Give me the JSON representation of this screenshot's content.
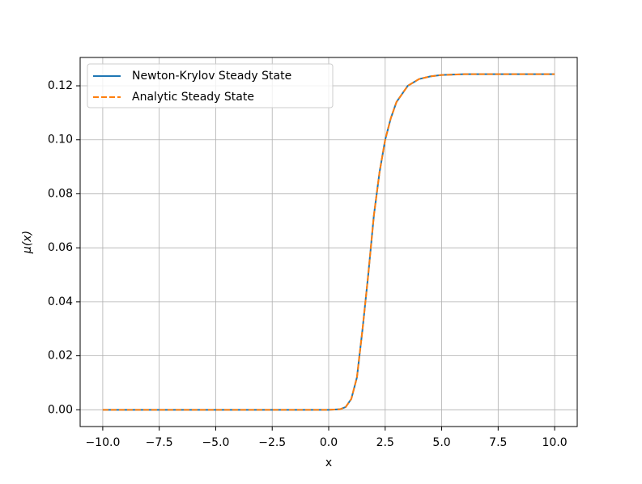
{
  "chart_data": {
    "type": "line",
    "xlabel": "x",
    "ylabel": "μ(x)",
    "x": [
      -10,
      -7.5,
      -5,
      -2.5,
      0,
      0.5,
      0.75,
      1.0,
      1.25,
      1.5,
      1.75,
      2.0,
      2.25,
      2.5,
      2.75,
      3.0,
      3.5,
      4.0,
      4.5,
      5.0,
      6.0,
      7.5,
      10
    ],
    "series": [
      {
        "name": "Newton-Krylov Steady State",
        "color": "#1f77b4",
        "dash": false,
        "values": [
          0,
          0,
          0,
          0,
          0,
          0.0002,
          0.001,
          0.004,
          0.012,
          0.03,
          0.05,
          0.072,
          0.088,
          0.1,
          0.108,
          0.114,
          0.12,
          0.1225,
          0.1235,
          0.124,
          0.1243,
          0.1243,
          0.1243
        ]
      },
      {
        "name": "Analytic Steady State",
        "color": "#ff7f0e",
        "dash": true,
        "values": [
          0,
          0,
          0,
          0,
          0,
          0.0002,
          0.001,
          0.004,
          0.012,
          0.03,
          0.05,
          0.072,
          0.088,
          0.1,
          0.108,
          0.114,
          0.12,
          0.1225,
          0.1235,
          0.124,
          0.1243,
          0.1243,
          0.1243
        ]
      }
    ],
    "xlim": [
      -11,
      11
    ],
    "ylim": [
      -0.0062,
      0.1305
    ],
    "xticks": [
      {
        "value": -10,
        "label": "−10.0"
      },
      {
        "value": -7.5,
        "label": "−7.5"
      },
      {
        "value": -5,
        "label": "−5.0"
      },
      {
        "value": -2.5,
        "label": "−2.5"
      },
      {
        "value": 0,
        "label": "0.0"
      },
      {
        "value": 2.5,
        "label": "2.5"
      },
      {
        "value": 5,
        "label": "5.0"
      },
      {
        "value": 7.5,
        "label": "7.5"
      },
      {
        "value": 10,
        "label": "10.0"
      }
    ],
    "yticks": [
      {
        "value": 0,
        "label": "0.00"
      },
      {
        "value": 0.02,
        "label": "0.02"
      },
      {
        "value": 0.04,
        "label": "0.04"
      },
      {
        "value": 0.06,
        "label": "0.06"
      },
      {
        "value": 0.08,
        "label": "0.08"
      },
      {
        "value": 0.1,
        "label": "0.10"
      },
      {
        "value": 0.12,
        "label": "0.12"
      }
    ],
    "grid": true,
    "legend": "upper-left"
  }
}
